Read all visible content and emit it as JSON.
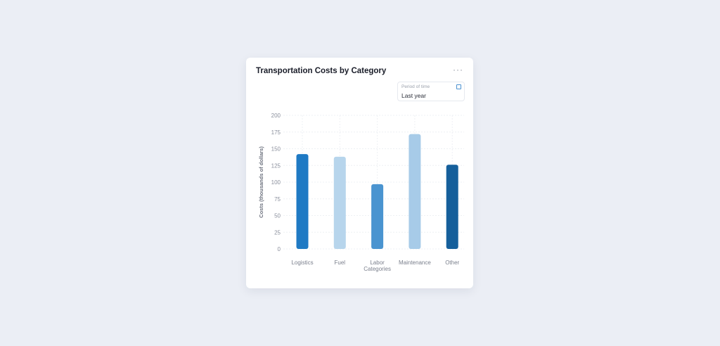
{
  "card": {
    "title": "Transportation Costs by Category",
    "more_label": "···",
    "more_icon": "ellipsis-icon"
  },
  "period": {
    "label": "Period of time",
    "value": "Last year",
    "icon": "calendar-icon"
  },
  "chart_data": {
    "type": "bar",
    "title": "Transportation Costs by Category",
    "xlabel": "",
    "ylabel": "Costs (thousands of dollars)",
    "ylim": [
      0,
      200
    ],
    "yticks": [
      0,
      25,
      50,
      75,
      100,
      125,
      150,
      175,
      200
    ],
    "categories": [
      "Logistics",
      "Fuel",
      "Labor Categories",
      "Maintenance",
      "Other"
    ],
    "category_lines": [
      [
        "Logistics"
      ],
      [
        "Fuel"
      ],
      [
        "Labor",
        "Categories"
      ],
      [
        "Maintenance"
      ],
      [
        "Other"
      ]
    ],
    "values": [
      142,
      138,
      97,
      172,
      126
    ],
    "colors": [
      "#1f7ac4",
      "#b7d5ec",
      "#4a94d0",
      "#a7cbe8",
      "#155f9b"
    ],
    "grid": true
  }
}
